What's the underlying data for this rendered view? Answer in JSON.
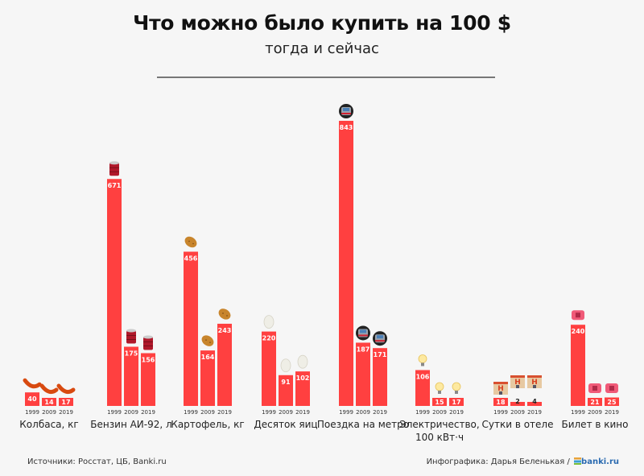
{
  "header": {
    "title": "Что можно было купить на 100 $",
    "subtitle": "тогда и сейчас"
  },
  "footer": {
    "sources": "Источники: Росстат, ЦБ, Banki.ru",
    "credit": "Инфографика: Дарья Беленькая /",
    "brand": "banki.ru"
  },
  "colors": {
    "bar": "#ff4040",
    "label": "#ffffff",
    "background": "#f6f6f6"
  },
  "chart_data": {
    "type": "bar",
    "title": "Что можно было купить на 100 $",
    "subtitle": "тогда и сейчас",
    "xlabel": "",
    "ylabel": "",
    "ylim": [
      0,
      843
    ],
    "grid": false,
    "legend": "none",
    "years": [
      "1999",
      "2009",
      "2019"
    ],
    "groups": [
      {
        "label": "Колбаса, кг",
        "icon": "sausage-icon",
        "values": [
          40,
          14,
          17
        ]
      },
      {
        "label": "Бензин АИ-92, л",
        "icon": "fuel-barrel-icon",
        "values": [
          671,
          175,
          156
        ]
      },
      {
        "label": "Картофель, кг",
        "icon": "potato-icon",
        "values": [
          456,
          164,
          243
        ]
      },
      {
        "label": "Десяток яиц",
        "icon": "egg-icon",
        "values": [
          220,
          91,
          102
        ]
      },
      {
        "label": "Поездка на метро",
        "icon": "metro-train-icon",
        "values": [
          843,
          187,
          171
        ]
      },
      {
        "label": "Электричество, 100 кВт·ч",
        "label_lines": [
          "Электричество,",
          "100 кВт·ч"
        ],
        "icon": "light-bulb-icon",
        "values": [
          106,
          15,
          17
        ]
      },
      {
        "label": "Сутки в отеле",
        "icon": "hotel-icon",
        "values": [
          18,
          2,
          4
        ]
      },
      {
        "label": "Билет в кино",
        "icon": "cinema-ticket-icon",
        "values": [
          240,
          21,
          25
        ]
      }
    ]
  }
}
